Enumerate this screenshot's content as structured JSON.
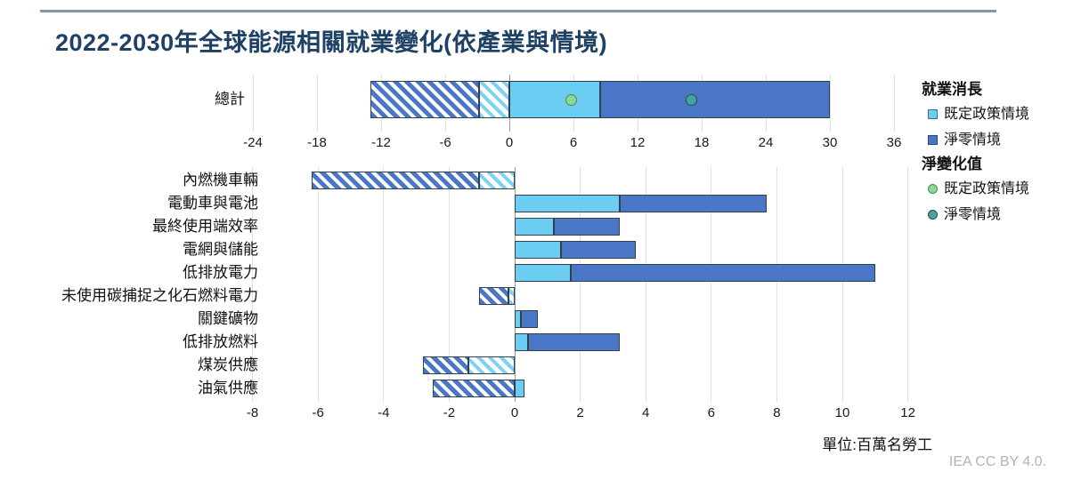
{
  "title": "2022-2030年全球能源相關就業變化(依產業與情境)",
  "unit_note": "單位:百萬名勞工",
  "credit": "IEA CC BY 4.0.",
  "legend": {
    "bars_title": "就業消長",
    "bars_items": [
      {
        "label": "既定政策情境",
        "swatch": "light-blue-square"
      },
      {
        "label": "淨零情境",
        "swatch": "dark-blue-square"
      }
    ],
    "net_title": "淨變化值",
    "net_items": [
      {
        "label": "既定政策情境",
        "swatch": "green-circle"
      },
      {
        "label": "淨零情境",
        "swatch": "teal-circle"
      }
    ]
  },
  "colors": {
    "steps_blue": "#6BCDF2",
    "nze_blue": "#4A76C6",
    "steps_net_green": "#8FD694",
    "nze_net_teal": "#47A2A0",
    "title_navy": "#1D4266",
    "rule_steel_blue": "#8296B2"
  },
  "chart_data": [
    {
      "type": "bar",
      "orientation": "horizontal-stacked",
      "title": "總計 (total, top panel)",
      "unit": "百萬名勞工 (million workers)",
      "x_axis": {
        "min": -24,
        "max": 36,
        "step": 6
      },
      "grid": true,
      "rows": [
        {
          "label": "總計",
          "segments": [
            {
              "series": "淨零情境",
              "style": "hatched",
              "meaning": "job-losses",
              "from": -13.0,
              "to": -2.8
            },
            {
              "series": "既定政策情境",
              "style": "hatched",
              "meaning": "job-losses",
              "from": -2.8,
              "to": 0
            },
            {
              "series": "既定政策情境",
              "style": "solid",
              "meaning": "job-gains",
              "from": 0,
              "to": 8.5
            },
            {
              "series": "淨零情境",
              "style": "solid",
              "meaning": "job-gains",
              "from": 8.5,
              "to": 30.0
            }
          ],
          "net_markers": [
            {
              "series": "既定政策情境",
              "value": 5.8
            },
            {
              "series": "淨零情境",
              "value": 17.0
            }
          ]
        }
      ]
    },
    {
      "type": "bar",
      "orientation": "horizontal-stacked",
      "title": "依產業 (by sector, bottom panel)",
      "unit": "百萬名勞工 (million workers)",
      "x_axis": {
        "min": -8,
        "max": 12,
        "step": 2
      },
      "grid": true,
      "rows": [
        {
          "label": "內燃機車輛",
          "segments": [
            {
              "series": "淨零情境",
              "style": "hatched",
              "meaning": "job-losses",
              "from": -6.2,
              "to": -1.1
            },
            {
              "series": "既定政策情境",
              "style": "hatched",
              "meaning": "job-losses",
              "from": -1.1,
              "to": 0
            }
          ]
        },
        {
          "label": "電動車與電池",
          "segments": [
            {
              "series": "既定政策情境",
              "style": "solid",
              "meaning": "job-gains",
              "from": 0,
              "to": 3.2
            },
            {
              "series": "淨零情境",
              "style": "solid",
              "meaning": "job-gains",
              "from": 3.2,
              "to": 7.7
            }
          ]
        },
        {
          "label": "最終使用端效率",
          "segments": [
            {
              "series": "既定政策情境",
              "style": "solid",
              "meaning": "job-gains",
              "from": 0,
              "to": 1.2
            },
            {
              "series": "淨零情境",
              "style": "solid",
              "meaning": "job-gains",
              "from": 1.2,
              "to": 3.2
            }
          ]
        },
        {
          "label": "電網與儲能",
          "segments": [
            {
              "series": "既定政策情境",
              "style": "solid",
              "meaning": "job-gains",
              "from": 0,
              "to": 1.4
            },
            {
              "series": "淨零情境",
              "style": "solid",
              "meaning": "job-gains",
              "from": 1.4,
              "to": 3.7
            }
          ]
        },
        {
          "label": "低排放電力",
          "segments": [
            {
              "series": "既定政策情境",
              "style": "solid",
              "meaning": "job-gains",
              "from": 0,
              "to": 1.7
            },
            {
              "series": "淨零情境",
              "style": "solid",
              "meaning": "job-gains",
              "from": 1.7,
              "to": 11.0
            }
          ]
        },
        {
          "label": "未使用碳捕捉之化石燃料電力",
          "segments": [
            {
              "series": "淨零情境",
              "style": "hatched",
              "meaning": "job-losses",
              "from": -1.1,
              "to": -0.2
            },
            {
              "series": "既定政策情境",
              "style": "hatched",
              "meaning": "job-losses",
              "from": -0.2,
              "to": 0
            }
          ]
        },
        {
          "label": "關鍵礦物",
          "segments": [
            {
              "series": "既定政策情境",
              "style": "solid",
              "meaning": "job-gains",
              "from": 0,
              "to": 0.2
            },
            {
              "series": "淨零情境",
              "style": "solid",
              "meaning": "job-gains",
              "from": 0.2,
              "to": 0.7
            }
          ]
        },
        {
          "label": "低排放燃料",
          "segments": [
            {
              "series": "既定政策情境",
              "style": "solid",
              "meaning": "job-gains",
              "from": 0,
              "to": 0.4
            },
            {
              "series": "淨零情境",
              "style": "solid",
              "meaning": "job-gains",
              "from": 0.4,
              "to": 3.2
            }
          ]
        },
        {
          "label": "煤炭供應",
          "segments": [
            {
              "series": "淨零情境",
              "style": "hatched",
              "meaning": "job-losses",
              "from": -2.8,
              "to": -1.4
            },
            {
              "series": "既定政策情境",
              "style": "hatched",
              "meaning": "job-losses",
              "from": -1.4,
              "to": 0
            }
          ]
        },
        {
          "label": "油氣供應",
          "segments": [
            {
              "series": "淨零情境",
              "style": "hatched",
              "meaning": "job-losses",
              "from": -2.5,
              "to": 0
            },
            {
              "series": "既定政策情境",
              "style": "solid",
              "meaning": "job-gains",
              "from": 0,
              "to": 0.3
            }
          ]
        }
      ]
    }
  ]
}
